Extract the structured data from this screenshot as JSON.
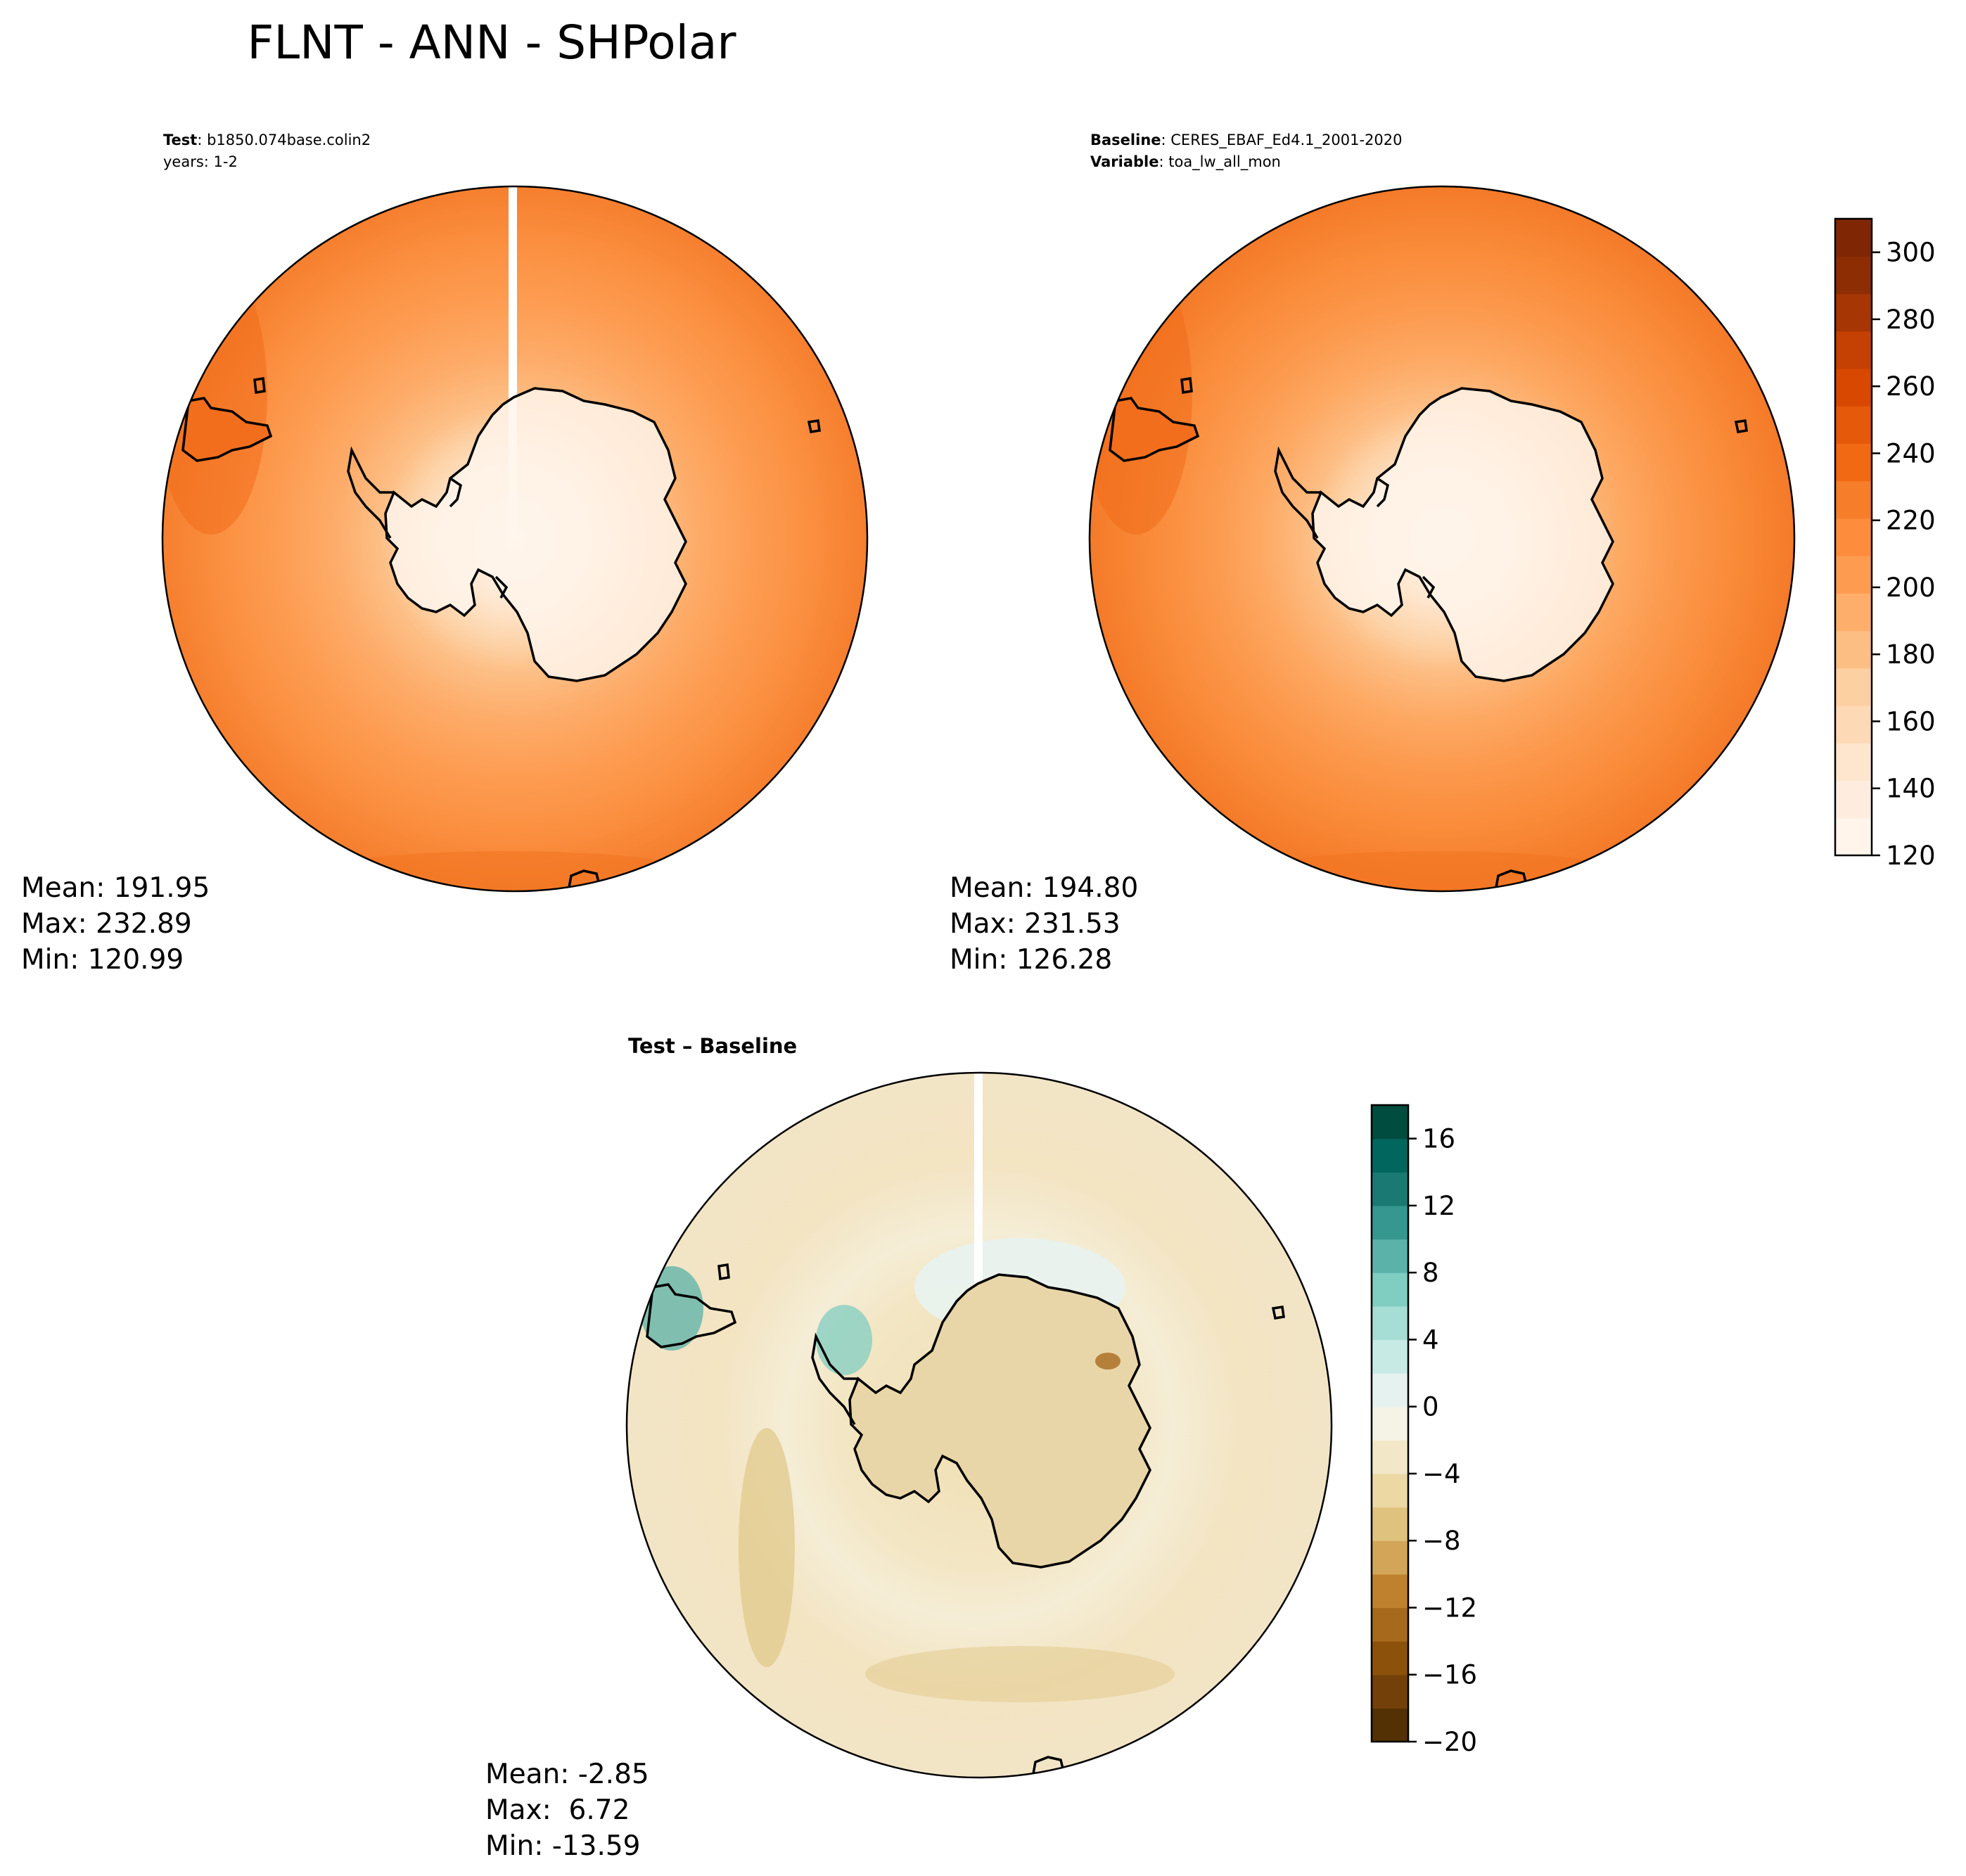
{
  "figure": {
    "title": "FLNT - ANN - SHPolar"
  },
  "colors": {
    "seq": [
      "#fff5eb",
      "#feedde",
      "#fee6ce",
      "#fdd9b5",
      "#fdd0a2",
      "#fdbe84",
      "#fdae6b",
      "#fd9c51",
      "#fd8d3c",
      "#f67d2a",
      "#f16913",
      "#e5590a",
      "#d94801",
      "#c44103",
      "#a63603",
      "#8c2d04",
      "#7f2704"
    ],
    "div": [
      "#543005",
      "#744009",
      "#8c510a",
      "#a76a1d",
      "#bf812d",
      "#d3a559",
      "#dfc27d",
      "#ebd8a3",
      "#f2e8c8",
      "#f5f2e6",
      "#e6f2ef",
      "#c7eae5",
      "#a6ddd4",
      "#80cdc1",
      "#5ab2a8",
      "#35978f",
      "#1a7a73",
      "#01665e",
      "#004c3f"
    ],
    "coast": "#000000"
  },
  "panels": {
    "test": {
      "label_bold": "Test",
      "label_value": ": b1850.074base.colin2",
      "line2": "years: 1-2",
      "mean": "Mean: 191.95",
      "max": "Max: 232.89",
      "min": "Min: 120.99"
    },
    "baseline": {
      "label_bold": "Baseline",
      "label_value": ": CERES_EBAF_Ed4.1_2001-2020",
      "var_bold": "Variable",
      "var_value": ": toa_lw_all_mon",
      "mean": "Mean: 194.80",
      "max": "Max: 231.53",
      "min": "Min: 126.28"
    },
    "diff": {
      "title": "Test – Baseline",
      "mean": "Mean: -2.85",
      "max": "Max:  6.72",
      "min": "Min: -13.59"
    }
  },
  "colorbars": {
    "main": {
      "ticks": [
        "120",
        "140",
        "160",
        "180",
        "200",
        "220",
        "240",
        "260",
        "280",
        "300"
      ],
      "tick_values": [
        120,
        140,
        160,
        180,
        200,
        220,
        240,
        260,
        280,
        300
      ],
      "range": [
        120,
        310
      ]
    },
    "diff": {
      "ticks": [
        "−20",
        "−16",
        "−12",
        "−8",
        "−4",
        "0",
        "4",
        "8",
        "12",
        "16"
      ],
      "tick_values": [
        -20,
        -16,
        -12,
        -8,
        -4,
        0,
        4,
        8,
        12,
        16
      ],
      "range": [
        -20,
        18
      ]
    }
  }
}
